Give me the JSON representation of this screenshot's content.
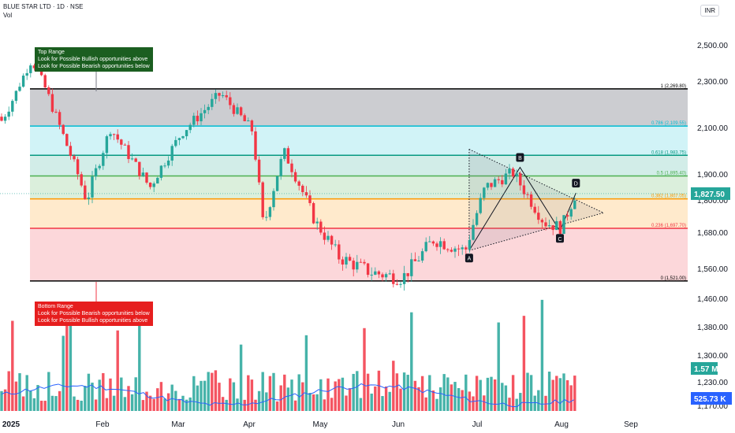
{
  "header": {
    "title": "BLUE STAR LTD · 1D · NSE",
    "sub": "Vol",
    "currency": "INR"
  },
  "annotations": {
    "top_range": [
      "Top Range",
      "Look for Possible Bullish opportunities above",
      "Look for Possible Bearish opportunities below"
    ],
    "bottom_range": [
      "Bottom Range",
      "Look for Possible Bearish opportunities below",
      "Look for Possible Bullish opportunities above"
    ]
  },
  "colors": {
    "up": "#26a69a",
    "down": "#f23645",
    "ma": "#2962ff",
    "fib_1": "#000000",
    "fib_786": "#00bcd4",
    "fib_618": "#089981",
    "fib_5": "#4caf50",
    "fib_382": "#ff9800",
    "fib_236": "#f23645",
    "fib_0": "#000000"
  },
  "chart_data": {
    "type": "candlestick",
    "symbol": "BLUE STAR LTD",
    "interval": "1D",
    "exchange": "NSE",
    "x_labels": [
      "2025",
      "Feb",
      "Mar",
      "Apr",
      "May",
      "Jun",
      "Jul",
      "Aug",
      "Sep"
    ],
    "y_ticks": [
      "2,500.00",
      "2,300.00",
      "2,100.00",
      "1,900.00",
      "1,800.00",
      "1,680.00",
      "1,560.00",
      "1,460.00",
      "1,380.00",
      "1,300.00",
      "1,230.00",
      "1,170.00"
    ],
    "ylim": [
      1150,
      2560
    ],
    "last_price": "1,827.50",
    "volume_label": "1.57 M",
    "volume_ma_label": "525.73 K",
    "fib_levels": [
      {
        "ratio": 1,
        "price": 2269.8,
        "label": "1 (2,269.80)"
      },
      {
        "ratio": 0.786,
        "price": 2109.55,
        "label": "0.786 (2,109.55)"
      },
      {
        "ratio": 0.618,
        "price": 1983.75,
        "label": "0.618 (1,983.75)"
      },
      {
        "ratio": 0.5,
        "price": 1895.4,
        "label": "0.5 (1,895.40)"
      },
      {
        "ratio": 0.382,
        "price": 1807.05,
        "label": "0.382 (1,807.05)"
      },
      {
        "ratio": 0.236,
        "price": 1697.7,
        "label": "0.236 (1,697.70)"
      },
      {
        "ratio": 0,
        "price": 1521.0,
        "label": "0 (1,521.00)"
      }
    ],
    "pattern_points": [
      {
        "label": "A",
        "date": "Jun 30",
        "price": 1622
      },
      {
        "label": "B",
        "date": "Jul 18",
        "price": 1932
      },
      {
        "label": "C",
        "date": "Aug 1",
        "price": 1688
      },
      {
        "label": "D",
        "date": "Aug 8",
        "price": 1830
      }
    ],
    "triangle_apex": {
      "date": "Aug 20",
      "price": 1755
    },
    "triangle_top_start": {
      "date": "Jun 30",
      "price": 2010
    },
    "candles": []
  }
}
